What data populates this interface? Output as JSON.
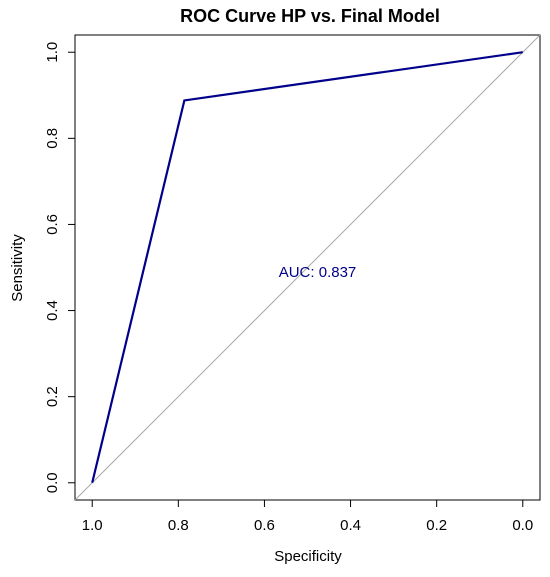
{
  "chart_data": {
    "type": "line",
    "title": "ROC Curve HP vs. Final Model",
    "xlabel": "Specificity",
    "ylabel": "Sensitivity",
    "x_reversed": true,
    "xlim": [
      1.04,
      -0.04
    ],
    "ylim": [
      -0.04,
      1.04
    ],
    "xticks": [
      "1.0",
      "0.8",
      "0.6",
      "0.4",
      "0.2",
      "0.0"
    ],
    "yticks": [
      "0.0",
      "0.2",
      "0.4",
      "0.6",
      "0.8",
      "1.0"
    ],
    "grid": false,
    "legend": "none",
    "series": [
      {
        "name": "",
        "color": "#00008B",
        "x": [
          1.0,
          0.786,
          0.0
        ],
        "y": [
          0.0,
          0.888,
          1.0
        ]
      }
    ],
    "reference_line": {
      "from": [
        1.0,
        0.0
      ],
      "to": [
        0.0,
        1.0
      ],
      "color": "#A9A9A9"
    },
    "annotation": {
      "text": "AUC: 0.837",
      "x": 0.5,
      "y": 0.49,
      "color": "#00008B"
    }
  }
}
